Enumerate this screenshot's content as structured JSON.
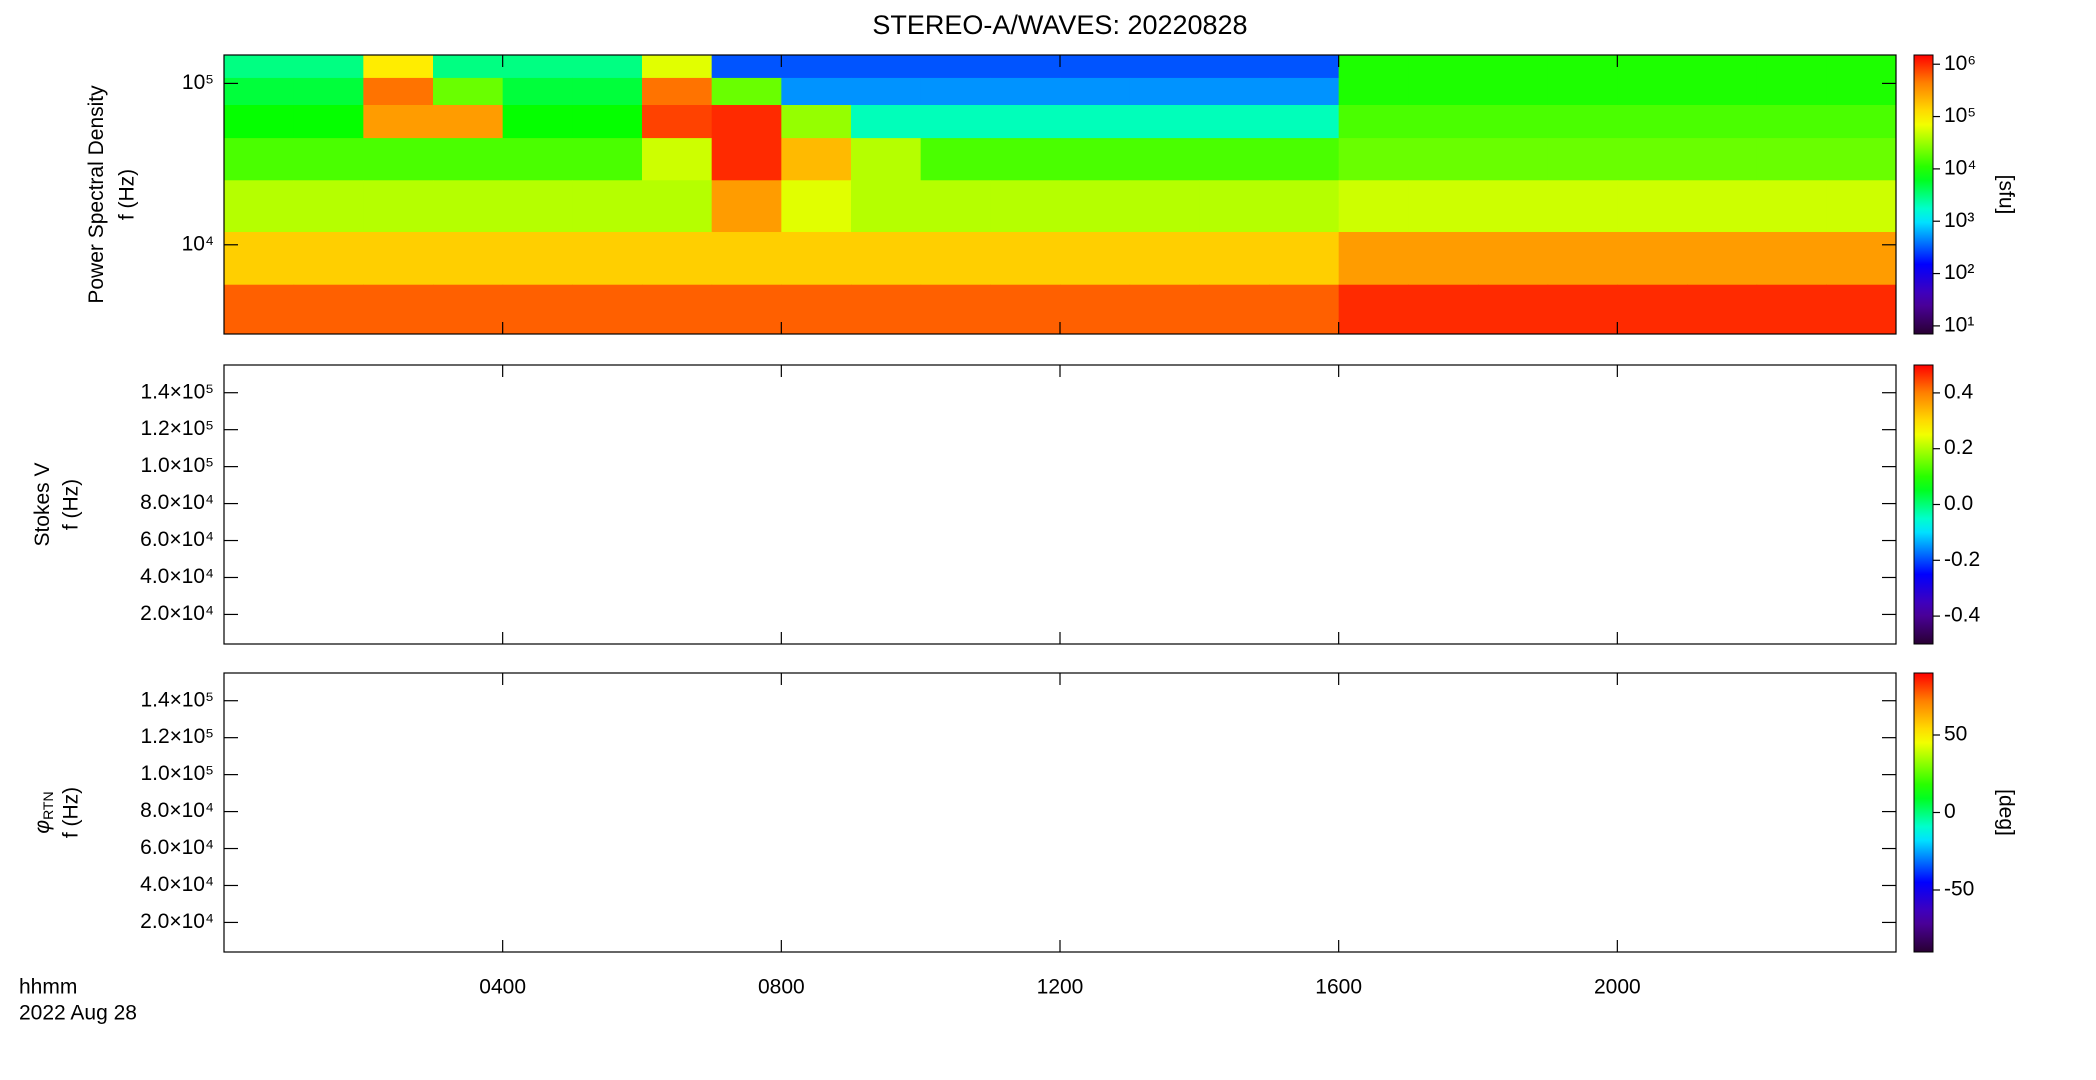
{
  "chart_data": [
    {
      "type": "heatmap",
      "title": "STEREO-A/WAVES: 20220828",
      "ylabel": "Power Spectral Density",
      "ylabel2": "f (Hz)",
      "xlim": [
        0,
        24
      ],
      "ylim": [
        2800,
        150000
      ],
      "ylog": true,
      "yticks": [
        {
          "value": 10000,
          "label": "10⁴"
        },
        {
          "value": 100000,
          "label": "10⁵"
        }
      ],
      "x": [
        0.5,
        1.5,
        2.5,
        3.5,
        4.5,
        5.5,
        6.5,
        7.5,
        8.5,
        9.5,
        10.5,
        11.5,
        12.5,
        13.5,
        14.5,
        15.5,
        16.5,
        17.5,
        18.5,
        19.5,
        20.5,
        21.5,
        22.5,
        23.5
      ],
      "y": [
        130000,
        90000,
        60000,
        35000,
        18000,
        8000,
        4000
      ],
      "z": [
        [
          3000,
          3000,
          100000,
          3000,
          3000,
          3000,
          60000,
          300,
          300,
          300,
          300,
          300,
          300,
          300,
          300,
          300,
          10000,
          10000,
          10000,
          10000,
          10000,
          10000,
          10000,
          10000
        ],
        [
          5000,
          5000,
          500000,
          20000,
          5000,
          5000,
          500000,
          20000,
          500,
          500,
          500,
          500,
          500,
          500,
          500,
          500,
          10000,
          10000,
          10000,
          10000,
          10000,
          10000,
          10000,
          10000
        ],
        [
          8000,
          8000,
          300000,
          300000,
          8000,
          8000,
          800000,
          1000000,
          30000,
          2000,
          2000,
          2000,
          2000,
          2000,
          2000,
          2000,
          15000,
          15000,
          15000,
          15000,
          15000,
          15000,
          15000,
          15000
        ],
        [
          15000,
          15000,
          15000,
          15000,
          15000,
          15000,
          50000,
          1000000,
          200000,
          40000,
          15000,
          15000,
          15000,
          15000,
          15000,
          15000,
          20000,
          20000,
          20000,
          20000,
          20000,
          20000,
          20000,
          20000
        ],
        [
          40000,
          40000,
          40000,
          40000,
          40000,
          40000,
          40000,
          300000,
          60000,
          40000,
          40000,
          40000,
          40000,
          40000,
          40000,
          40000,
          50000,
          50000,
          50000,
          50000,
          50000,
          50000,
          50000,
          50000
        ],
        [
          150000,
          150000,
          150000,
          150000,
          150000,
          150000,
          150000,
          150000,
          150000,
          150000,
          150000,
          150000,
          150000,
          150000,
          150000,
          150000,
          300000,
          300000,
          300000,
          300000,
          300000,
          300000,
          300000,
          300000
        ],
        [
          600000,
          600000,
          600000,
          600000,
          600000,
          600000,
          600000,
          600000,
          600000,
          600000,
          600000,
          600000,
          600000,
          600000,
          600000,
          600000,
          1000000,
          1000000,
          1000000,
          1000000,
          1000000,
          1000000,
          1000000,
          1000000
        ]
      ],
      "colormap": "rainbow",
      "zlim": [
        7,
        1500000
      ],
      "zlog": true,
      "zlabel": "[sfu]",
      "zticks": [
        {
          "value": 10,
          "label": "10¹"
        },
        {
          "value": 100,
          "label": "10²"
        },
        {
          "value": 1000,
          "label": "10³"
        },
        {
          "value": 10000,
          "label": "10⁴"
        },
        {
          "value": 100000,
          "label": "10⁵"
        },
        {
          "value": 1000000,
          "label": "10⁶"
        }
      ]
    },
    {
      "type": "heatmap",
      "ylabel": "Stokes V",
      "ylabel2": "f (Hz)",
      "xlim": [
        0,
        24
      ],
      "ylim": [
        4000,
        155000
      ],
      "yticks": [
        {
          "value": 20000,
          "label": "2.0×10⁴"
        },
        {
          "value": 40000,
          "label": "4.0×10⁴"
        },
        {
          "value": 60000,
          "label": "6.0×10⁴"
        },
        {
          "value": 80000,
          "label": "8.0×10⁴"
        },
        {
          "value": 100000,
          "label": "1.0×10⁵"
        },
        {
          "value": 120000,
          "label": "1.2×10⁵"
        },
        {
          "value": 140000,
          "label": "1.4×10⁵"
        }
      ],
      "colormap": "rainbow",
      "zlim": [
        -0.5,
        0.5
      ],
      "zticks": [
        -0.4,
        -0.2,
        {
          "value": 0,
          "label": "0.0"
        },
        0.2,
        0.4
      ]
    },
    {
      "type": "heatmap",
      "ylabel": "φ",
      "ylabel_sub": "RTN",
      "ylabel2": "f (Hz)",
      "xlim": [
        0,
        24
      ],
      "ylim": [
        4000,
        155000
      ],
      "yticks": [
        {
          "value": 20000,
          "label": "2.0×10⁴"
        },
        {
          "value": 40000,
          "label": "4.0×10⁴"
        },
        {
          "value": 60000,
          "label": "6.0×10⁴"
        },
        {
          "value": 80000,
          "label": "8.0×10⁴"
        },
        {
          "value": 100000,
          "label": "1.0×10⁵"
        },
        {
          "value": 120000,
          "label": "1.2×10⁵"
        },
        {
          "value": 140000,
          "label": "1.4×10⁵"
        }
      ],
      "colormap": "rainbow",
      "zlim": [
        -90,
        90
      ],
      "zlabel": "[deg]",
      "zticks": [
        -50,
        0,
        50
      ],
      "xlabel": "hhmm",
      "xlabel_date": "2022 Aug 28",
      "xticks": [
        {
          "value": 4,
          "label": "0400"
        },
        {
          "value": 8,
          "label": "0800"
        },
        {
          "value": 12,
          "label": "1200"
        },
        {
          "value": 16,
          "label": "1600"
        },
        {
          "value": 20,
          "label": "2000"
        }
      ]
    }
  ]
}
